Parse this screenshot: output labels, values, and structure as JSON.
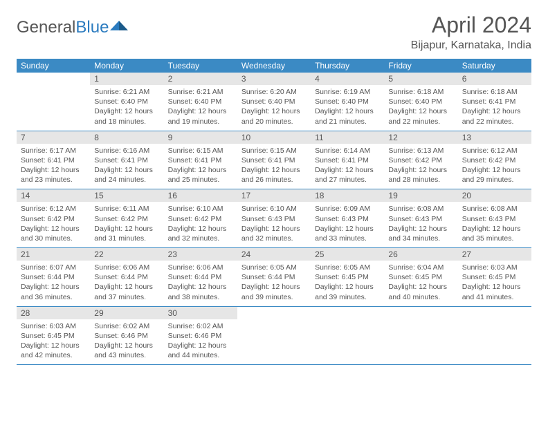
{
  "logo": {
    "word1": "General",
    "word2": "Blue"
  },
  "title": "April 2024",
  "location": "Bijapur, Karnataka, India",
  "days_of_week": [
    "Sunday",
    "Monday",
    "Tuesday",
    "Wednesday",
    "Thursday",
    "Friday",
    "Saturday"
  ],
  "colors": {
    "header_bg": "#3b8ac4",
    "header_text": "#ffffff",
    "daynum_bg": "#e6e6e6",
    "text": "#555555",
    "rule": "#3b8ac4",
    "logo_blue": "#2b7bbf"
  },
  "layout": {
    "cols": 7,
    "rows": 5,
    "first_day_offset": 1
  },
  "cells": [
    {
      "n": 1,
      "sr": "6:21 AM",
      "ss": "6:40 PM",
      "dl": "12 hours and 18 minutes."
    },
    {
      "n": 2,
      "sr": "6:21 AM",
      "ss": "6:40 PM",
      "dl": "12 hours and 19 minutes."
    },
    {
      "n": 3,
      "sr": "6:20 AM",
      "ss": "6:40 PM",
      "dl": "12 hours and 20 minutes."
    },
    {
      "n": 4,
      "sr": "6:19 AM",
      "ss": "6:40 PM",
      "dl": "12 hours and 21 minutes."
    },
    {
      "n": 5,
      "sr": "6:18 AM",
      "ss": "6:40 PM",
      "dl": "12 hours and 22 minutes."
    },
    {
      "n": 6,
      "sr": "6:18 AM",
      "ss": "6:41 PM",
      "dl": "12 hours and 22 minutes."
    },
    {
      "n": 7,
      "sr": "6:17 AM",
      "ss": "6:41 PM",
      "dl": "12 hours and 23 minutes."
    },
    {
      "n": 8,
      "sr": "6:16 AM",
      "ss": "6:41 PM",
      "dl": "12 hours and 24 minutes."
    },
    {
      "n": 9,
      "sr": "6:15 AM",
      "ss": "6:41 PM",
      "dl": "12 hours and 25 minutes."
    },
    {
      "n": 10,
      "sr": "6:15 AM",
      "ss": "6:41 PM",
      "dl": "12 hours and 26 minutes."
    },
    {
      "n": 11,
      "sr": "6:14 AM",
      "ss": "6:41 PM",
      "dl": "12 hours and 27 minutes."
    },
    {
      "n": 12,
      "sr": "6:13 AM",
      "ss": "6:42 PM",
      "dl": "12 hours and 28 minutes."
    },
    {
      "n": 13,
      "sr": "6:12 AM",
      "ss": "6:42 PM",
      "dl": "12 hours and 29 minutes."
    },
    {
      "n": 14,
      "sr": "6:12 AM",
      "ss": "6:42 PM",
      "dl": "12 hours and 30 minutes."
    },
    {
      "n": 15,
      "sr": "6:11 AM",
      "ss": "6:42 PM",
      "dl": "12 hours and 31 minutes."
    },
    {
      "n": 16,
      "sr": "6:10 AM",
      "ss": "6:42 PM",
      "dl": "12 hours and 32 minutes."
    },
    {
      "n": 17,
      "sr": "6:10 AM",
      "ss": "6:43 PM",
      "dl": "12 hours and 32 minutes."
    },
    {
      "n": 18,
      "sr": "6:09 AM",
      "ss": "6:43 PM",
      "dl": "12 hours and 33 minutes."
    },
    {
      "n": 19,
      "sr": "6:08 AM",
      "ss": "6:43 PM",
      "dl": "12 hours and 34 minutes."
    },
    {
      "n": 20,
      "sr": "6:08 AM",
      "ss": "6:43 PM",
      "dl": "12 hours and 35 minutes."
    },
    {
      "n": 21,
      "sr": "6:07 AM",
      "ss": "6:44 PM",
      "dl": "12 hours and 36 minutes."
    },
    {
      "n": 22,
      "sr": "6:06 AM",
      "ss": "6:44 PM",
      "dl": "12 hours and 37 minutes."
    },
    {
      "n": 23,
      "sr": "6:06 AM",
      "ss": "6:44 PM",
      "dl": "12 hours and 38 minutes."
    },
    {
      "n": 24,
      "sr": "6:05 AM",
      "ss": "6:44 PM",
      "dl": "12 hours and 39 minutes."
    },
    {
      "n": 25,
      "sr": "6:05 AM",
      "ss": "6:45 PM",
      "dl": "12 hours and 39 minutes."
    },
    {
      "n": 26,
      "sr": "6:04 AM",
      "ss": "6:45 PM",
      "dl": "12 hours and 40 minutes."
    },
    {
      "n": 27,
      "sr": "6:03 AM",
      "ss": "6:45 PM",
      "dl": "12 hours and 41 minutes."
    },
    {
      "n": 28,
      "sr": "6:03 AM",
      "ss": "6:45 PM",
      "dl": "12 hours and 42 minutes."
    },
    {
      "n": 29,
      "sr": "6:02 AM",
      "ss": "6:46 PM",
      "dl": "12 hours and 43 minutes."
    },
    {
      "n": 30,
      "sr": "6:02 AM",
      "ss": "6:46 PM",
      "dl": "12 hours and 44 minutes."
    }
  ],
  "labels": {
    "sunrise": "Sunrise: ",
    "sunset": "Sunset: ",
    "daylight": "Daylight: "
  }
}
